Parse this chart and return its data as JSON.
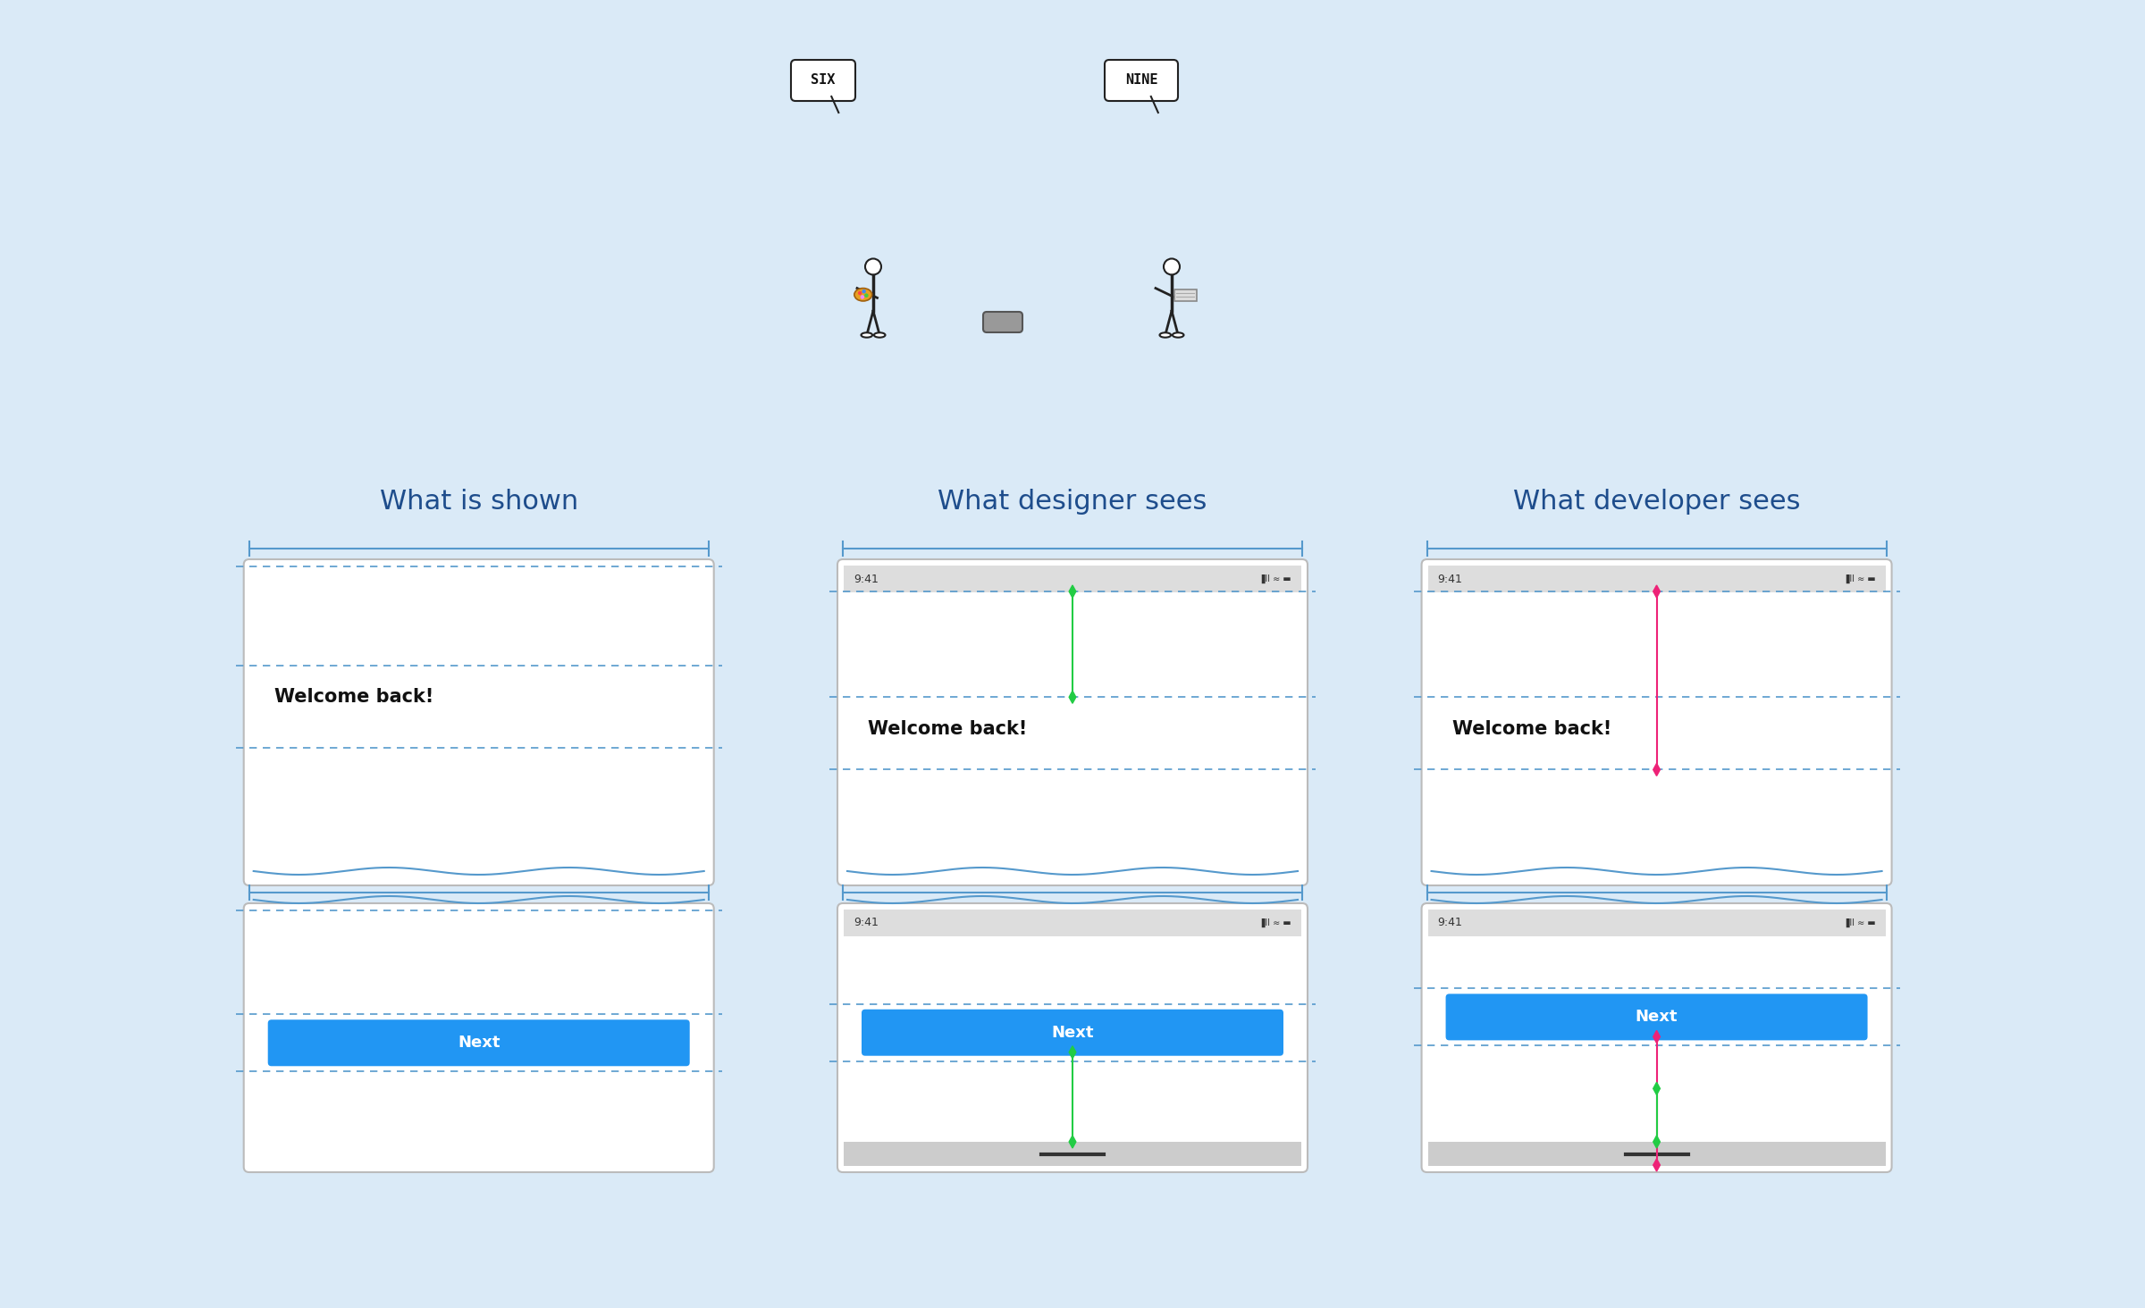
{
  "bg_color": "#daeaf7",
  "title_color": "#1e4d8c",
  "phone_bg": "#ffffff",
  "phone_border": "#bbbbbb",
  "btn_color": "#2196f3",
  "btn_text": "Next",
  "welcome_text": "Welcome back!",
  "dashed_color": "#5599cc",
  "arrow_green": "#22cc44",
  "arrow_pink": "#ee2277",
  "col1_title": "What is shown",
  "col2_title": "What designer sees",
  "col3_title": "What developer sees",
  "status_color": "#dddddd",
  "navbar_color": "#cccccc",
  "home_bar_color": "#333333",
  "wiggle_color": "#5599cc",
  "bracket_color": "#5599cc"
}
